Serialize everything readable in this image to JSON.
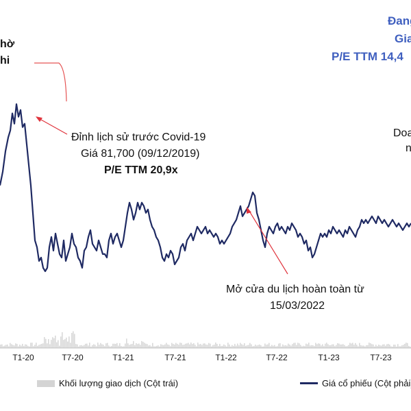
{
  "chart_data": {
    "type": "line",
    "x_ticks": [
      "T1-20",
      "T7-20",
      "T1-21",
      "T7-21",
      "T1-22",
      "T7-22",
      "T1-23",
      "T7-23"
    ],
    "series": [
      {
        "name": "Giá cổ phiếu (Cột phải)",
        "color": "#1f2a63",
        "points": [
          [
            0,
            58
          ],
          [
            4,
            62
          ],
          [
            8,
            68
          ],
          [
            12,
            72
          ],
          [
            15,
            74
          ],
          [
            18,
            79
          ],
          [
            21,
            76
          ],
          [
            24,
            81.7
          ],
          [
            27,
            78
          ],
          [
            30,
            80
          ],
          [
            33,
            75
          ],
          [
            36,
            76
          ],
          [
            39,
            70
          ],
          [
            42,
            64
          ],
          [
            45,
            58
          ],
          [
            48,
            50
          ],
          [
            51,
            42
          ],
          [
            54,
            40
          ],
          [
            57,
            36
          ],
          [
            60,
            37
          ],
          [
            63,
            34
          ],
          [
            66,
            33
          ],
          [
            69,
            34
          ],
          [
            72,
            40
          ],
          [
            75,
            43
          ],
          [
            78,
            39
          ],
          [
            81,
            44
          ],
          [
            84,
            41
          ],
          [
            87,
            38
          ],
          [
            90,
            37
          ],
          [
            93,
            42
          ],
          [
            96,
            36
          ],
          [
            99,
            38
          ],
          [
            102,
            40
          ],
          [
            105,
            44
          ],
          [
            108,
            41
          ],
          [
            111,
            40
          ],
          [
            114,
            37
          ],
          [
            117,
            36
          ],
          [
            120,
            34
          ],
          [
            123,
            39
          ],
          [
            126,
            40
          ],
          [
            129,
            43
          ],
          [
            132,
            45
          ],
          [
            135,
            41
          ],
          [
            138,
            40
          ],
          [
            141,
            39
          ],
          [
            144,
            42
          ],
          [
            147,
            40
          ],
          [
            150,
            38
          ],
          [
            153,
            38
          ],
          [
            156,
            37
          ],
          [
            159,
            42
          ],
          [
            162,
            44
          ],
          [
            165,
            41
          ],
          [
            168,
            43
          ],
          [
            171,
            44
          ],
          [
            174,
            42
          ],
          [
            177,
            40
          ],
          [
            180,
            42
          ],
          [
            183,
            46
          ],
          [
            186,
            50
          ],
          [
            189,
            53
          ],
          [
            192,
            51
          ],
          [
            195,
            48
          ],
          [
            198,
            50
          ],
          [
            201,
            53
          ],
          [
            204,
            51
          ],
          [
            207,
            53
          ],
          [
            210,
            52
          ],
          [
            213,
            50
          ],
          [
            216,
            51
          ],
          [
            219,
            48
          ],
          [
            222,
            46
          ],
          [
            225,
            45
          ],
          [
            228,
            43
          ],
          [
            231,
            42
          ],
          [
            234,
            40
          ],
          [
            237,
            37
          ],
          [
            240,
            36
          ],
          [
            243,
            38
          ],
          [
            246,
            37
          ],
          [
            249,
            39
          ],
          [
            252,
            38
          ],
          [
            255,
            35
          ],
          [
            258,
            36
          ],
          [
            261,
            37
          ],
          [
            264,
            40
          ],
          [
            267,
            41
          ],
          [
            270,
            39
          ],
          [
            273,
            42
          ],
          [
            276,
            43
          ],
          [
            279,
            44
          ],
          [
            282,
            42
          ],
          [
            285,
            44
          ],
          [
            288,
            46
          ],
          [
            291,
            45
          ],
          [
            294,
            44
          ],
          [
            297,
            45
          ],
          [
            300,
            46
          ],
          [
            303,
            44
          ],
          [
            306,
            45
          ],
          [
            309,
            44
          ],
          [
            312,
            43
          ],
          [
            315,
            44
          ],
          [
            318,
            43
          ],
          [
            321,
            41
          ],
          [
            324,
            42
          ],
          [
            327,
            41
          ],
          [
            330,
            42
          ],
          [
            333,
            43
          ],
          [
            336,
            44
          ],
          [
            339,
            46
          ],
          [
            342,
            47
          ],
          [
            345,
            48
          ],
          [
            348,
            50
          ],
          [
            351,
            52
          ],
          [
            354,
            49
          ],
          [
            357,
            50
          ],
          [
            360,
            51
          ],
          [
            363,
            52
          ],
          [
            366,
            54
          ],
          [
            369,
            56
          ],
          [
            372,
            55
          ],
          [
            375,
            50
          ],
          [
            378,
            48
          ],
          [
            381,
            45
          ],
          [
            384,
            42
          ],
          [
            387,
            40
          ],
          [
            390,
            44
          ],
          [
            393,
            46
          ],
          [
            396,
            45
          ],
          [
            399,
            44
          ],
          [
            402,
            46
          ],
          [
            405,
            47
          ],
          [
            408,
            45
          ],
          [
            411,
            46
          ],
          [
            414,
            45
          ],
          [
            417,
            44
          ],
          [
            420,
            46
          ],
          [
            423,
            45
          ],
          [
            426,
            47
          ],
          [
            429,
            46
          ],
          [
            432,
            45
          ],
          [
            435,
            43
          ],
          [
            438,
            44
          ],
          [
            441,
            43
          ],
          [
            444,
            41
          ],
          [
            447,
            42
          ],
          [
            450,
            39
          ],
          [
            453,
            40
          ],
          [
            456,
            37
          ],
          [
            459,
            38
          ],
          [
            462,
            40
          ],
          [
            465,
            42
          ],
          [
            468,
            44
          ],
          [
            471,
            43
          ],
          [
            474,
            44
          ],
          [
            477,
            43
          ],
          [
            480,
            45
          ],
          [
            483,
            44
          ],
          [
            486,
            46
          ],
          [
            489,
            45
          ],
          [
            492,
            44
          ],
          [
            495,
            45
          ],
          [
            498,
            44
          ],
          [
            501,
            43
          ],
          [
            504,
            45
          ],
          [
            507,
            44
          ],
          [
            510,
            46
          ],
          [
            513,
            45
          ],
          [
            516,
            44
          ],
          [
            519,
            43
          ],
          [
            522,
            45
          ],
          [
            525,
            46
          ],
          [
            528,
            48
          ],
          [
            531,
            47
          ],
          [
            534,
            48
          ],
          [
            537,
            47
          ],
          [
            540,
            48
          ],
          [
            543,
            49
          ],
          [
            546,
            48
          ],
          [
            549,
            47
          ],
          [
            552,
            49
          ],
          [
            555,
            48
          ],
          [
            558,
            47
          ],
          [
            561,
            48
          ],
          [
            564,
            47
          ],
          [
            567,
            46
          ],
          [
            570,
            47
          ],
          [
            573,
            48
          ],
          [
            576,
            47
          ],
          [
            579,
            46
          ],
          [
            582,
            47
          ],
          [
            585,
            46
          ],
          [
            588,
            45
          ],
          [
            591,
            46
          ],
          [
            594,
            47
          ],
          [
            597,
            46
          ],
          [
            600,
            47
          ]
        ]
      }
    ],
    "xlabel": "",
    "ylabel": "",
    "legend": [
      {
        "label": "Khối lượng giao dịch (Cột trái)",
        "color": "#d4d4d4"
      },
      {
        "label": "Giá cổ phiếu (Cột phải)",
        "color": "#1f2a63"
      }
    ],
    "grid": false
  },
  "annotations": {
    "peak_line1": "Đỉnh lịch sử trước Covid-19",
    "peak_line2": "Giá 81,700 (09/12/2019)",
    "peak_line3": "P/E TTM 20,9x",
    "reopen_line1": "Mở cửa du lịch hoàn toàn từ",
    "reopen_line2": "15/03/2022",
    "top_left_1": "hờ",
    "top_left_2": "hi",
    "top_right_1": "Đang",
    "top_right_2": "Gia",
    "top_right_3": "P/E TTM 14,4",
    "right_mid_1": "Doa",
    "right_mid_2": "n"
  }
}
